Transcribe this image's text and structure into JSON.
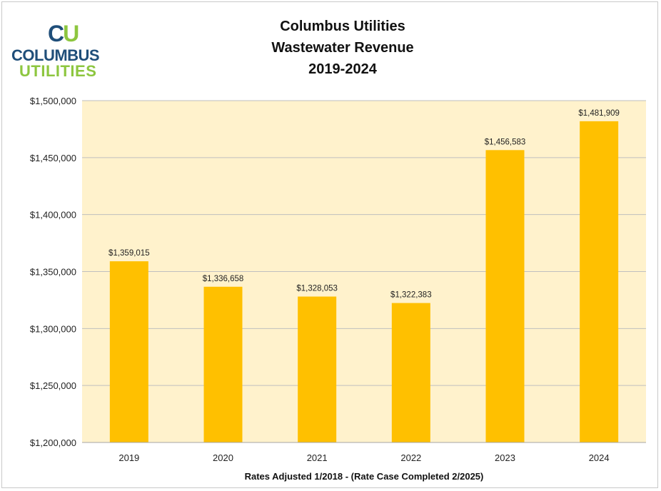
{
  "logo": {
    "mark_c": "C",
    "mark_u": "U",
    "line1": "COLUMBUS",
    "line2": "UTILITIES",
    "colors": {
      "blue": "#1f4e79",
      "green": "#8dc63f"
    }
  },
  "chart_data": {
    "type": "bar",
    "title": [
      "Columbus Utilities",
      "Wastewater Revenue",
      "2019-2024"
    ],
    "xlabel": "Rates Adjusted 1/2018 - (Rate Case Completed 2/2025)",
    "ylabel": "",
    "categories": [
      "2019",
      "2020",
      "2021",
      "2022",
      "2023",
      "2024"
    ],
    "values": [
      1359015,
      1336658,
      1328053,
      1322383,
      1456583,
      1481909
    ],
    "data_labels": [
      "$1,359,015",
      "$1,336,658",
      "$1,328,053",
      "$1,322,383",
      "$1,456,583",
      "$1,481,909"
    ],
    "ylim": [
      1200000,
      1500000
    ],
    "yticks": [
      1200000,
      1250000,
      1300000,
      1350000,
      1400000,
      1450000,
      1500000
    ],
    "ytick_labels": [
      "$1,200,000",
      "$1,250,000",
      "$1,300,000",
      "$1,350,000",
      "$1,400,000",
      "$1,450,000",
      "$1,500,000"
    ],
    "grid": true,
    "legend": "none",
    "colors": {
      "bar": "#ffc000",
      "plot_background": "#fff2cc",
      "grid": "#bfbfbf"
    }
  }
}
